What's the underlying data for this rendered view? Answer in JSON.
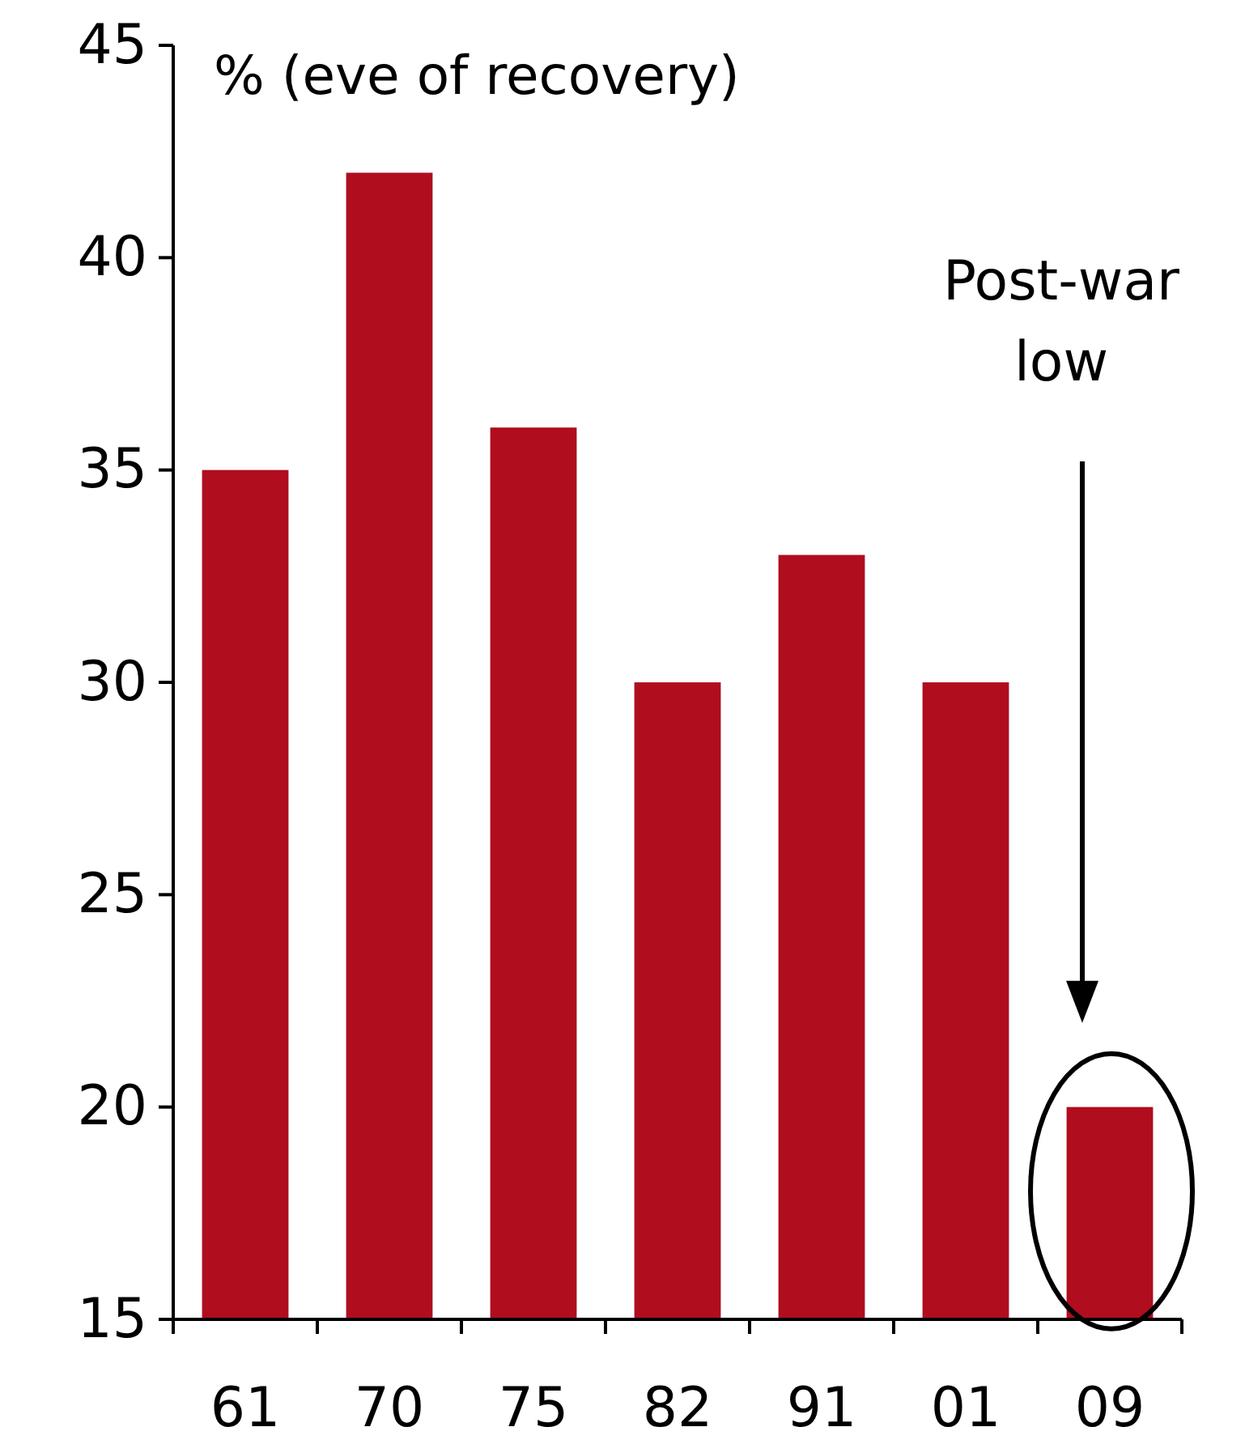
{
  "chart_data": {
    "type": "bar",
    "ylabel": "% (eve of recovery)",
    "categories": [
      "61",
      "70",
      "75",
      "82",
      "91",
      "01",
      "09"
    ],
    "values": [
      35,
      42,
      36,
      30,
      33,
      30,
      20
    ],
    "color": "#b00d1f",
    "ylim": [
      15,
      45
    ],
    "yticks": [
      15,
      20,
      25,
      30,
      35,
      40,
      45
    ],
    "grid": false,
    "annotations": [
      "Post-war low"
    ]
  }
}
